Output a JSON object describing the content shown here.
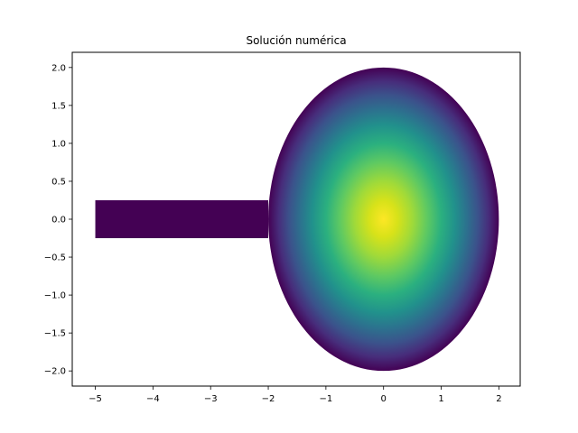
{
  "chart_data": {
    "type": "heatmap",
    "title": "Solución numérica",
    "xlabel": "",
    "ylabel": "",
    "xlim": [
      -5.4,
      2.37
    ],
    "ylim": [
      -2.2,
      2.2
    ],
    "xticks": [
      -5,
      -4,
      -3,
      -2,
      -1,
      0,
      1,
      2
    ],
    "yticks": [
      -2.0,
      -1.5,
      -1.0,
      -0.5,
      0.0,
      0.5,
      1.0,
      1.5,
      2.0
    ],
    "xtick_labels": [
      "−5",
      "−4",
      "−3",
      "−2",
      "−1",
      "0",
      "1",
      "2"
    ],
    "ytick_labels": [
      "−2.0",
      "−1.5",
      "−1.0",
      "−0.5",
      "0.0",
      "0.5",
      "1.0",
      "1.5",
      "2.0"
    ],
    "grid": false,
    "colormap": "viridis",
    "domain": {
      "ellipse": {
        "center": [
          0,
          0
        ],
        "semi_axis_x": 2,
        "semi_axis_y": 2
      },
      "channel": {
        "x": [
          -5,
          -2
        ],
        "y": [
          -0.25,
          0.25
        ]
      }
    },
    "field": {
      "peak_location": [
        0,
        0
      ],
      "peak_value": 1.0,
      "boundary_value": 0.0,
      "description_levels": "maximum at center, decreasing radially to zero at the boundary"
    }
  },
  "colors": {
    "viridis_low": "#440154",
    "viridis_high": "#fde725"
  }
}
